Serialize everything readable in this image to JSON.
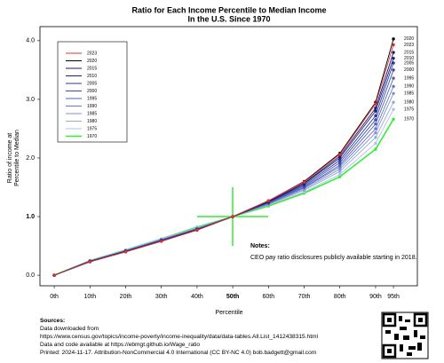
{
  "chart_data": {
    "type": "line",
    "title": "Ratio for Each Income Percentile to Median Income",
    "subtitle": "In the U.S. Since 1970",
    "x_label": "Percentile",
    "y_label": [
      "Ratio of income at",
      "Percentile to Median"
    ],
    "x": [
      0,
      10,
      20,
      30,
      40,
      50,
      60,
      70,
      80,
      90,
      95
    ],
    "xlim": [
      -4,
      101.7
    ],
    "ylim": [
      -0.18,
      4.24
    ],
    "xticks": [
      {
        "value": 0,
        "label": "0th"
      },
      {
        "value": 10,
        "label": "10th"
      },
      {
        "value": 20,
        "label": "20th"
      },
      {
        "value": 30,
        "label": "30th"
      },
      {
        "value": 40,
        "label": "40th"
      },
      {
        "value": 50,
        "label": "50th",
        "bold": true
      },
      {
        "value": 60,
        "label": "60th"
      },
      {
        "value": 70,
        "label": "70th"
      },
      {
        "value": 80,
        "label": "80th"
      },
      {
        "value": 90,
        "label": "90th"
      },
      {
        "value": 95,
        "label": "95th"
      }
    ],
    "yticks": [
      {
        "value": 0,
        "label": "0.0"
      },
      {
        "value": 1,
        "label": "1.0",
        "bold": true
      },
      {
        "value": 2,
        "label": "2.0"
      },
      {
        "value": 3,
        "label": "3.0"
      },
      {
        "value": 4,
        "label": "4.0"
      }
    ],
    "legend": "top-left",
    "series": [
      {
        "name": "2023",
        "color": "#e03030",
        "values": [
          0,
          0.23,
          0.4,
          0.58,
          0.77,
          1,
          1.27,
          1.59,
          2.06,
          2.92,
          3.93
        ]
      },
      {
        "name": "2020",
        "color": "#000000",
        "values": [
          0,
          0.23,
          0.4,
          0.58,
          0.77,
          1,
          1.27,
          1.6,
          2.08,
          2.95,
          4.03
        ]
      },
      {
        "name": "2015",
        "color": "#1a1a6e",
        "values": [
          0,
          0.23,
          0.4,
          0.58,
          0.77,
          1,
          1.26,
          1.57,
          2.03,
          2.85,
          3.8
        ]
      },
      {
        "name": "2010",
        "color": "#20208a",
        "values": [
          0,
          0.23,
          0.41,
          0.59,
          0.78,
          1,
          1.25,
          1.56,
          2.0,
          2.8,
          3.7
        ]
      },
      {
        "name": "2005",
        "color": "#2a3a9a",
        "values": [
          0,
          0.24,
          0.41,
          0.59,
          0.78,
          1,
          1.25,
          1.54,
          1.96,
          2.72,
          3.62
        ]
      },
      {
        "name": "2000",
        "color": "#3a4aaa",
        "values": [
          0,
          0.24,
          0.41,
          0.59,
          0.78,
          1,
          1.24,
          1.52,
          1.92,
          2.65,
          3.5
        ]
      },
      {
        "name": "1995",
        "color": "#5060b8",
        "values": [
          0,
          0.24,
          0.41,
          0.6,
          0.79,
          1,
          1.23,
          1.5,
          1.88,
          2.58,
          3.36
        ]
      },
      {
        "name": "1990",
        "color": "#6878c4",
        "values": [
          0,
          0.24,
          0.42,
          0.6,
          0.79,
          1,
          1.22,
          1.49,
          1.85,
          2.5,
          3.22
        ]
      },
      {
        "name": "1985",
        "color": "#8090d0",
        "values": [
          0,
          0.24,
          0.42,
          0.61,
          0.8,
          1,
          1.21,
          1.47,
          1.81,
          2.43,
          3.1
        ]
      },
      {
        "name": "1980",
        "color": "#98a8dc",
        "values": [
          0,
          0.25,
          0.42,
          0.61,
          0.8,
          1,
          1.21,
          1.45,
          1.77,
          2.35,
          2.95
        ]
      },
      {
        "name": "1975",
        "color": "#b0c0e8",
        "values": [
          0,
          0.25,
          0.43,
          0.62,
          0.81,
          1,
          1.2,
          1.42,
          1.72,
          2.25,
          2.83
        ]
      },
      {
        "name": "1970",
        "color": "#33ee33",
        "values": [
          0,
          0.25,
          0.43,
          0.62,
          0.82,
          1,
          1.18,
          1.4,
          1.68,
          2.15,
          2.66
        ]
      }
    ],
    "notes_title": "Notes:",
    "notes": "CEO pay ratio disclosures publicly available starting in 2018.",
    "sources_title": "Sources:",
    "sources": [
      "Data downloaded from",
      "https://www.census.gov/topics/income-poverty/income-inequality/data/data-tables.All.List_1412438315.html",
      "Data and code available at https://ebmgt.github.io/Wage_ratio",
      "Printed: 2024-11-17. Attribution-NonCommercial 4.0 International (CC BY-NC 4.0) bob.badgett@gmail.com"
    ]
  }
}
